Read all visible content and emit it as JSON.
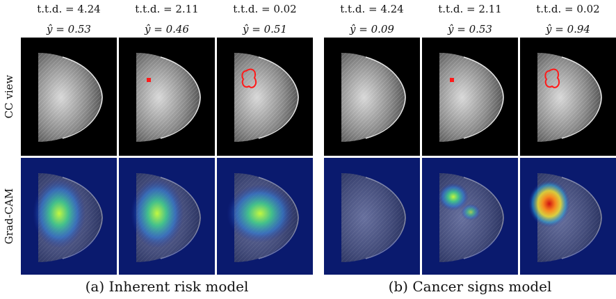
{
  "row_labels": {
    "cc_view": "CC view",
    "grad_cam": "Grad-CAM"
  },
  "groups": [
    {
      "caption": "(a) Inherent risk model",
      "columns": [
        {
          "ttd": "t.t.d. = 4.24",
          "yhat": "ŷ = 0.53",
          "lesion": "none",
          "heat": "broad"
        },
        {
          "ttd": "t.t.d. = 2.11",
          "yhat": "ŷ = 0.46",
          "lesion": "small",
          "heat": "broad"
        },
        {
          "ttd": "t.t.d. = 0.02",
          "yhat": "ŷ = 0.51",
          "lesion": "outlined",
          "heat": "broad"
        }
      ]
    },
    {
      "caption": "(b) Cancer signs model",
      "columns": [
        {
          "ttd": "t.t.d. = 4.24",
          "yhat": "ŷ = 0.09",
          "lesion": "none",
          "heat": "none"
        },
        {
          "ttd": "t.t.d. = 2.11",
          "yhat": "ŷ = 0.53",
          "lesion": "small",
          "heat": "spot"
        },
        {
          "ttd": "t.t.d. = 0.02",
          "yhat": "ŷ = 0.94",
          "lesion": "outlined",
          "heat": "focal"
        }
      ]
    }
  ],
  "colors": {
    "background": "#000000",
    "gradcam_base": "#0a1a6e",
    "lesion": "#ff1a1a"
  }
}
